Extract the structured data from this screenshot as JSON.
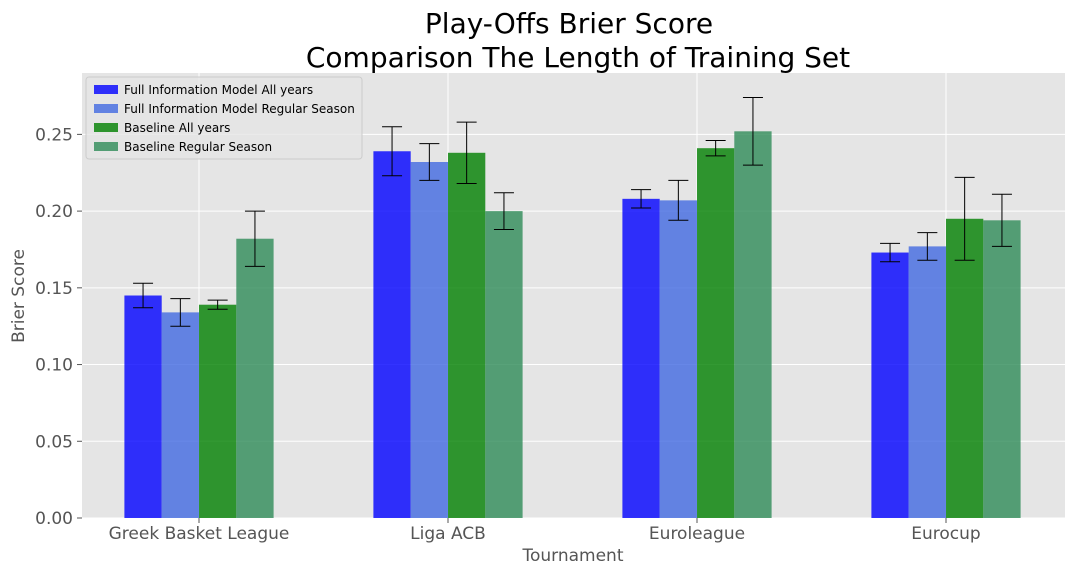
{
  "chart_data": {
    "type": "bar",
    "title_line1": "Play-Offs Brier Score",
    "title_line2": "Comparison The Length of Training Set",
    "xlabel": "Tournament",
    "ylabel": "Brier Score",
    "ylim": [
      0,
      0.29
    ],
    "yticks": [
      0.0,
      0.05,
      0.1,
      0.15,
      0.2,
      0.25
    ],
    "ytick_labels": [
      "0.00",
      "0.05",
      "0.10",
      "0.15",
      "0.20",
      "0.25"
    ],
    "grid": true,
    "legend_position": "top-left",
    "categories": [
      "Greek Basket League",
      "Liga ACB",
      "Euroleague",
      "Eurocup"
    ],
    "series": [
      {
        "name": "Full Information Model All years",
        "color": "#0000ff",
        "opacity": 0.8,
        "values": [
          0.145,
          0.239,
          0.208,
          0.173
        ],
        "errors": [
          0.008,
          0.016,
          0.006,
          0.006
        ]
      },
      {
        "name": "Full Information Model Regular Season",
        "color": "#4169e1",
        "opacity": 0.8,
        "values": [
          0.134,
          0.232,
          0.207,
          0.177
        ],
        "errors": [
          0.009,
          0.012,
          0.013,
          0.009
        ]
      },
      {
        "name": "Baseline All years",
        "color": "#008000",
        "opacity": 0.8,
        "values": [
          0.139,
          0.238,
          0.241,
          0.195
        ],
        "errors": [
          0.003,
          0.02,
          0.005,
          0.027
        ]
      },
      {
        "name": "Baseline Regular Season",
        "color": "#2e8b57",
        "opacity": 0.8,
        "values": [
          0.182,
          0.2,
          0.252,
          0.194
        ],
        "errors": [
          0.018,
          0.012,
          0.022,
          0.017
        ]
      }
    ]
  }
}
